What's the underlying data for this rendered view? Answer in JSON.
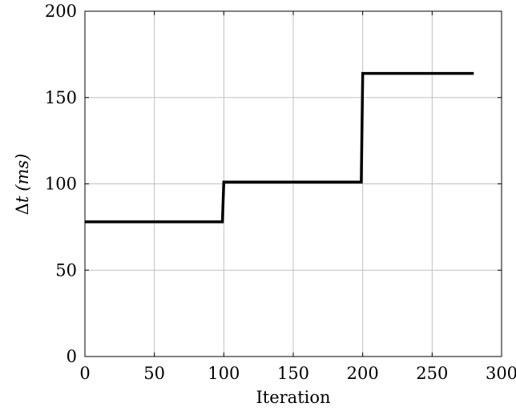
{
  "chart_data": {
    "type": "line",
    "xlabel": "Iteration",
    "ylabel": {
      "prefix": "Δ",
      "symbol": "t",
      "unit": "(ms)"
    },
    "xlim": [
      0,
      300
    ],
    "ylim": [
      0,
      200
    ],
    "xticks": [
      0,
      50,
      100,
      150,
      200,
      250,
      300
    ],
    "yticks": [
      0,
      50,
      100,
      150,
      200
    ],
    "xtick_labels": [
      "0",
      "50",
      "100",
      "150",
      "200",
      "250",
      "300"
    ],
    "ytick_labels": [
      "0",
      "50",
      "100",
      "150",
      "200"
    ],
    "grid": true,
    "series": [
      {
        "color": "#000000",
        "x": [
          0,
          99,
          100,
          199,
          200,
          280
        ],
        "y": [
          78,
          78,
          101,
          101,
          164,
          164
        ]
      }
    ]
  }
}
